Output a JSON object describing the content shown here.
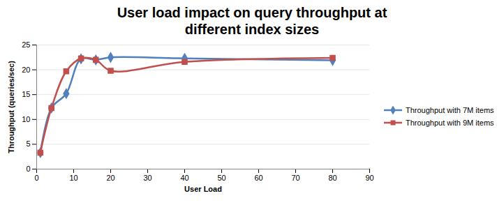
{
  "chart_data": {
    "type": "line",
    "title": "User load impact on query throughput at different index sizes",
    "x_label": "User Load",
    "y_label": "Throughput (queries/sec)",
    "x": [
      1,
      4,
      8,
      12,
      16,
      20,
      40,
      80
    ],
    "series": [
      {
        "name": "Throughput with 7M items",
        "color": "#4f81bd",
        "marker": "diamond",
        "line_style": "smooth",
        "values": [
          3.3,
          12.3,
          15.2,
          22.2,
          22.0,
          22.5,
          22.3,
          21.9
        ]
      },
      {
        "name": "Throughput with 9M items",
        "color": "#c0504d",
        "marker": "square",
        "line_style": "smooth",
        "values": [
          3.3,
          12.3,
          19.7,
          22.3,
          22.0,
          19.8,
          21.6,
          22.4
        ]
      }
    ],
    "xlim": [
      0,
      90
    ],
    "xticks": [
      0,
      10,
      20,
      30,
      40,
      50,
      60,
      70,
      80,
      90
    ],
    "ylim": [
      0,
      25
    ],
    "yticks": [
      0,
      5,
      10,
      15,
      20,
      25
    ],
    "grid": true,
    "legend": "right"
  }
}
